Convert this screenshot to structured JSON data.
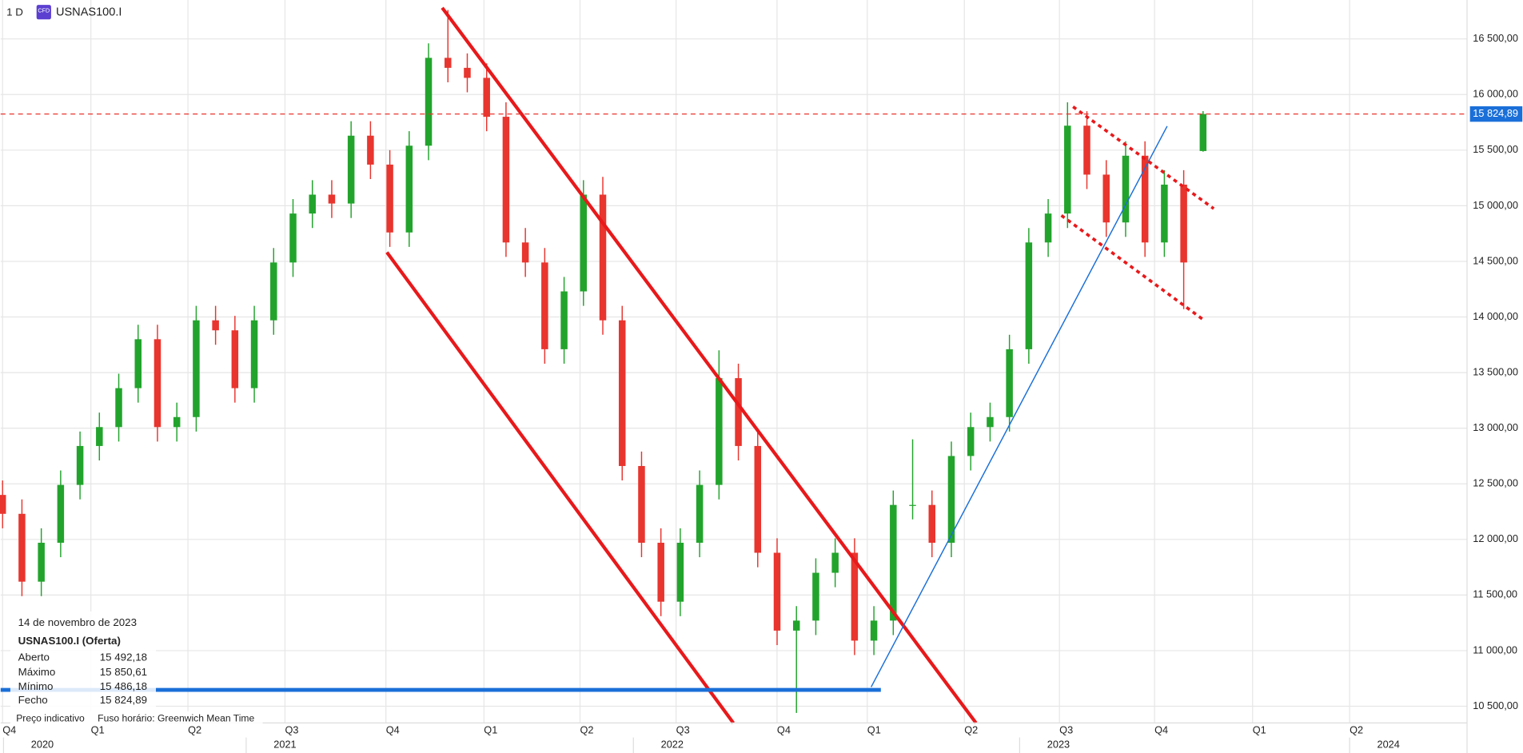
{
  "chart_data": {
    "type": "candlestick",
    "timeframe": "1 D",
    "title": "USNAS100.I",
    "icon": "CFD",
    "up_color": "#22a42c",
    "down_color": "#e8352e",
    "grid": true,
    "ylim": [
      10350,
      16850
    ],
    "yticks": [
      {
        "value": 10500,
        "label": "10 500,00"
      },
      {
        "value": 11000,
        "label": "11 000,00"
      },
      {
        "value": 11500,
        "label": "11 500,00"
      },
      {
        "value": 12000,
        "label": "12 000,00"
      },
      {
        "value": 12500,
        "label": "12 500,00"
      },
      {
        "value": 13000,
        "label": "13 000,00"
      },
      {
        "value": 13500,
        "label": "13 500,00"
      },
      {
        "value": 14000,
        "label": "14 000,00"
      },
      {
        "value": 14500,
        "label": "14 500,00"
      },
      {
        "value": 15000,
        "label": "15 000,00"
      },
      {
        "value": 15500,
        "label": "15 500,00"
      },
      {
        "value": 16000,
        "label": "16 000,00"
      },
      {
        "value": 16500,
        "label": "16 500,00"
      }
    ],
    "quarters": [
      "Q4",
      "Q1",
      "Q2",
      "Q3",
      "Q4",
      "Q1",
      "Q2",
      "Q3",
      "Q4",
      "Q1",
      "Q2",
      "Q3",
      "Q4",
      "Q1",
      "Q2"
    ],
    "years": [
      "2020",
      "2021",
      "2022",
      "2023",
      "2024"
    ],
    "open": [
      12400,
      12230,
      11620,
      11970,
      12490,
      12840,
      13010,
      13360,
      13800,
      13010,
      13100,
      13970,
      13880,
      13360,
      13970,
      14490,
      14930,
      15100,
      15020,
      15630,
      15370,
      14760,
      15540,
      16330,
      16240,
      16150,
      15800,
      14670,
      14490,
      13710,
      14230,
      15100,
      13970,
      12660,
      11970,
      11440,
      11970,
      12490,
      13450,
      12840,
      11880,
      11180,
      11270,
      11700,
      11880,
      11090,
      11270,
      12310,
      12310,
      11970,
      12750,
      13010,
      13100,
      13710,
      14670,
      14930,
      15720,
      15280,
      14850,
      15450,
      14670,
      15190,
      15492.18
    ],
    "high": [
      12530,
      12360,
      12100,
      12620,
      12970,
      13140,
      13490,
      13930,
      13930,
      13230,
      14100,
      14100,
      14010,
      14100,
      14620,
      15060,
      15230,
      15230,
      15760,
      15760,
      15500,
      15670,
      16460,
      16760,
      16370,
      16280,
      15930,
      14800,
      14620,
      14360,
      15230,
      15260,
      14100,
      12790,
      12100,
      12100,
      12620,
      13700,
      13580,
      12970,
      12010,
      11400,
      11830,
      12010,
      12010,
      11400,
      12440,
      12900,
      12440,
      12880,
      13140,
      13230,
      13840,
      14800,
      15060,
      15930,
      15850,
      15410,
      15580,
      15580,
      15320,
      15320,
      15850.61
    ],
    "low": [
      12100,
      11490,
      11490,
      11840,
      12360,
      12710,
      12880,
      13230,
      12880,
      12880,
      12970,
      13750,
      13230,
      13230,
      13840,
      14360,
      14800,
      14890,
      14890,
      15240,
      14630,
      14630,
      15410,
      16110,
      16020,
      15670,
      14540,
      14360,
      13580,
      13580,
      14100,
      13840,
      12530,
      11840,
      11310,
      11310,
      11840,
      12360,
      12710,
      11750,
      11050,
      10440,
      11140,
      11570,
      10960,
      10960,
      11140,
      12180,
      11840,
      11840,
      12620,
      12880,
      12970,
      13580,
      14540,
      14800,
      15150,
      14720,
      14720,
      14540,
      14540,
      14070,
      15486.18
    ],
    "close": [
      12230,
      11620,
      11970,
      12490,
      12840,
      13010,
      13360,
      13800,
      13010,
      13100,
      13970,
      13880,
      13360,
      13970,
      14490,
      14930,
      15100,
      15020,
      15630,
      15370,
      14760,
      15540,
      16330,
      16240,
      16150,
      15800,
      14670,
      14490,
      13710,
      14230,
      15100,
      13970,
      12660,
      11970,
      11440,
      11970,
      12490,
      13450,
      12840,
      11880,
      11180,
      11270,
      11700,
      11880,
      11090,
      11270,
      12310,
      12310,
      11970,
      12750,
      13010,
      13100,
      13710,
      14670,
      14930,
      15720,
      15280,
      14850,
      15450,
      14670,
      15190,
      14490,
      15824.89
    ],
    "last_price": {
      "value": 15824.89,
      "label": "15 824,89"
    },
    "info": {
      "date": "14 de novembro de 2023",
      "title": "USNAS100.I (Oferta)",
      "rows": [
        [
          "Aberto",
          "15 492,18"
        ],
        [
          "Máximo",
          "15 850,61"
        ],
        [
          "Mínimo",
          "15 486,18"
        ],
        [
          "Fecho",
          "15 824,89"
        ]
      ]
    },
    "footer": [
      "Preço indicativo",
      "Fuso horário: Greenwich Mean Time"
    ]
  }
}
